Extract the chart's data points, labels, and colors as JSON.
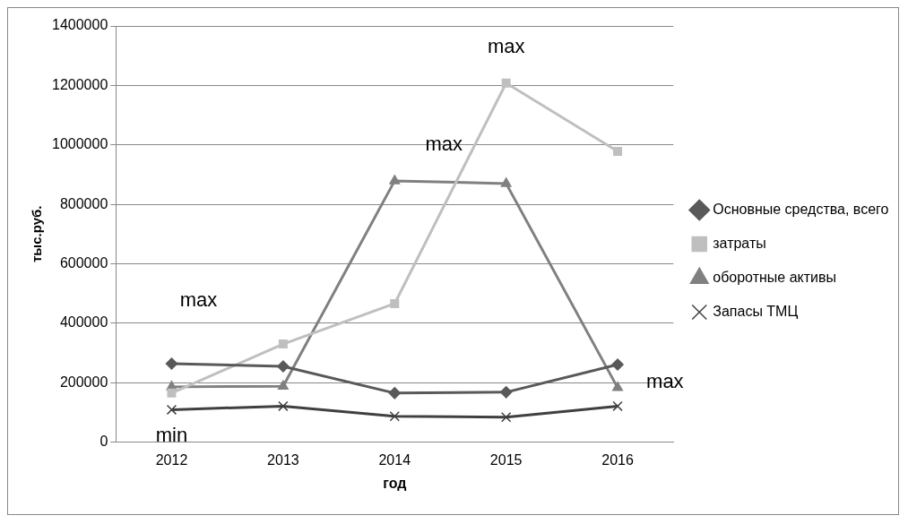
{
  "chart_data": {
    "type": "line",
    "xlabel": "год",
    "ylabel": "тыс.руб.",
    "categories": [
      "2012",
      "2013",
      "2014",
      "2015",
      "2016"
    ],
    "series": [
      {
        "name": "Основные средства, всего",
        "color": "#595959",
        "marker": "diamond",
        "values": [
          264000,
          255000,
          165000,
          168000,
          261000
        ]
      },
      {
        "name": "затраты",
        "color": "#bfbfbf",
        "marker": "square",
        "values": [
          165000,
          330000,
          466000,
          1208000,
          978000
        ]
      },
      {
        "name": "оборотные активы",
        "color": "#808080",
        "marker": "triangle",
        "values": [
          186000,
          188000,
          879000,
          870000,
          183000
        ]
      },
      {
        "name": "Запасы ТМЦ",
        "color": "#404040",
        "marker": "cross",
        "values": [
          109000,
          121000,
          87000,
          84000,
          121000
        ]
      }
    ],
    "ylim": [
      0,
      1400000
    ],
    "yticks": [
      0,
      200000,
      400000,
      600000,
      800000,
      1000000,
      1200000,
      1400000
    ],
    "grid": "y",
    "legend": "right",
    "annotations": [
      {
        "text": "max",
        "x": "2012",
        "y": 264000
      },
      {
        "text": "min",
        "x": "2012",
        "y": 109000
      },
      {
        "text": "max",
        "x": "2014",
        "y": 879000
      },
      {
        "text": "max",
        "x": "2015",
        "y": 1208000
      },
      {
        "text": "max",
        "x": "2016",
        "y": 261000
      }
    ]
  }
}
